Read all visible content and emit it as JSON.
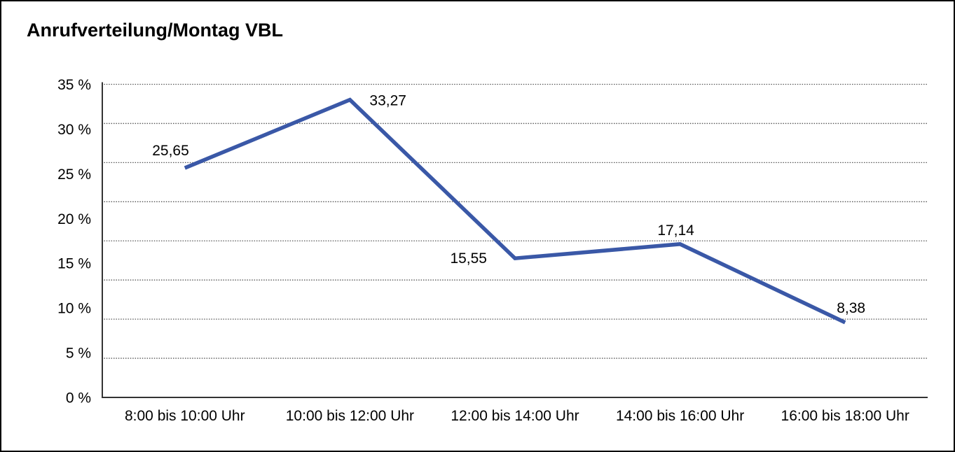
{
  "title": "Anrufverteilung/Montag VBL",
  "chart_data": {
    "type": "line",
    "title": "Anrufverteilung/Montag VBL",
    "categories": [
      "8:00 bis 10:00 Uhr",
      "10:00 bis 12:00 Uhr",
      "12:00 bis 14:00 Uhr",
      "14:00 bis 16:00 Uhr",
      "16:00 bis 18:00 Uhr"
    ],
    "series": [
      {
        "name": "Anrufverteilung Montag VBL",
        "values": [
          25.65,
          33.27,
          15.55,
          17.14,
          8.38
        ],
        "value_labels": [
          "25,65",
          "33,27",
          "15,55",
          "17,14",
          "8,38"
        ],
        "value_label_positions": [
          "above-left",
          "right",
          "left",
          "above",
          "above-right"
        ]
      }
    ],
    "xlabel": "",
    "ylabel": "",
    "ylim": [
      0,
      35
    ],
    "y_ticks": [
      {
        "value": 35,
        "label": "35 %"
      },
      {
        "value": 30,
        "label": "30 %"
      },
      {
        "value": 25,
        "label": "25 %"
      },
      {
        "value": 20,
        "label": "20 %"
      },
      {
        "value": 15,
        "label": "15 %"
      },
      {
        "value": 10,
        "label": "10 %"
      },
      {
        "value": 5,
        "label": "5 %"
      },
      {
        "value": 0,
        "label": "0 %"
      }
    ],
    "grid": {
      "visible": true,
      "style": "dotted",
      "horizontal_divisions": 8
    },
    "legend": {
      "visible": false
    },
    "colors": {
      "line": "#3A58A7",
      "grid": "#555555",
      "axis": "#333333",
      "text": "#000000",
      "background": "#ffffff",
      "frame_border": "#000000"
    }
  }
}
